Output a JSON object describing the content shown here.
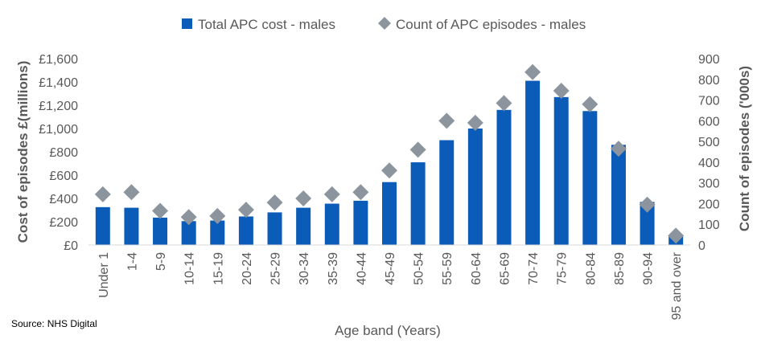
{
  "source": "Source: NHS Digital",
  "colors": {
    "bar": "#0b5cb8",
    "marker": "#8c959e",
    "axis": "#d9d9d9",
    "text": "#595959"
  },
  "chart_data": {
    "type": "bar",
    "categories": [
      "Under 1",
      "1-4",
      "5-9",
      "10-14",
      "15-19",
      "20-24",
      "25-29",
      "30-34",
      "35-39",
      "40-44",
      "45-49",
      "50-54",
      "55-59",
      "60-64",
      "65-69",
      "70-74",
      "75-79",
      "80-84",
      "85-89",
      "90-94",
      "95 and over"
    ],
    "series": [
      {
        "name": "Total APC cost - males",
        "type": "bar",
        "axis": "left",
        "values": [
          325,
          320,
          235,
          205,
          210,
          245,
          280,
          320,
          355,
          380,
          540,
          710,
          900,
          1000,
          1160,
          1410,
          1270,
          1150,
          860,
          370,
          75
        ]
      },
      {
        "name": "Count of APC episodes - males",
        "type": "scatter",
        "marker": "diamond",
        "axis": "right",
        "values": [
          245,
          255,
          165,
          135,
          140,
          170,
          205,
          225,
          245,
          255,
          360,
          460,
          600,
          590,
          685,
          835,
          745,
          680,
          465,
          195,
          45
        ]
      }
    ],
    "xlabel": "Age band (Years)",
    "ylabel": "Cost of episodes £(millions)",
    "y2label": "Count of episodes ('000s)",
    "ylim": [
      0,
      1600
    ],
    "y2lim": [
      0,
      900
    ],
    "yticks": [
      "£0",
      "£200",
      "£400",
      "£600",
      "£800",
      "£1,000",
      "£1,200",
      "£1,400",
      "£1,600"
    ],
    "y2ticks": [
      "0",
      "100",
      "200",
      "300",
      "400",
      "500",
      "600",
      "700",
      "800",
      "900"
    ],
    "legend": "top",
    "grid": false
  }
}
